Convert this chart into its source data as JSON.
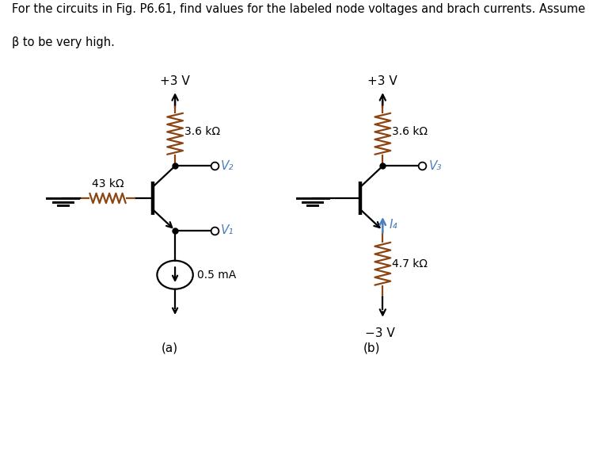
{
  "title_line1": "For the circuits in Fig. P6.61, find values for the labeled node voltages and brach currents. Assume",
  "title_line2": "β to be very high.",
  "title_fontsize": 10.5,
  "bg_color": "#c8dff0",
  "outer_bg": "#ffffff",
  "line_color": "#000000",
  "resistor_color": "#8B4513",
  "label_color": "#4d7fbf",
  "circuit_a": {
    "label": "(a)",
    "vcc_label": "+3 V",
    "r1_label": "3.6 kΩ",
    "r2_label": "43 kΩ",
    "v1_label": "V₁",
    "v2_label": "V₂",
    "current_label": "0.5 mA"
  },
  "circuit_b": {
    "label": "(b)",
    "vcc_label": "+3 V",
    "vee_label": "−3 V",
    "r1_label": "3.6 kΩ",
    "r2_label": "4.7 kΩ",
    "v3_label": "V₃",
    "i4_label": "I₄"
  }
}
